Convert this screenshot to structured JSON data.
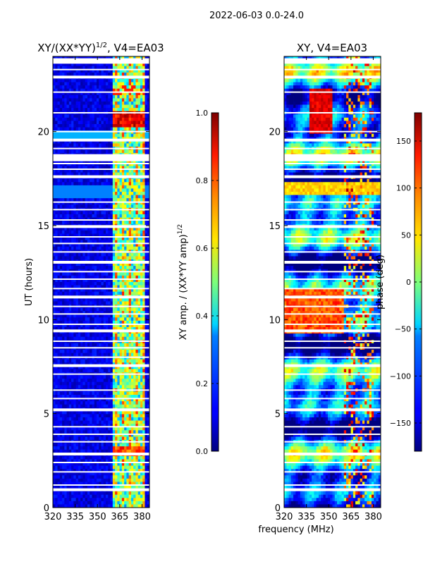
{
  "figure": {
    "suptitle": "2022-06-03 0.0-24.0",
    "xlabel_shared": "frequency (MHz)"
  },
  "chart_data": [
    {
      "type": "heatmap",
      "title": "XY/(XX*YY)",
      "title_superscript": "1/2",
      "title_suffix": ", V4=EA03",
      "xlabel": "",
      "ylabel": "UT (hours)",
      "xlim": [
        320,
        385
      ],
      "ylim": [
        0,
        24
      ],
      "xticks": [
        320,
        335,
        350,
        365,
        380
      ],
      "xtick_labels": [
        "320",
        "335",
        "350",
        "365",
        "380"
      ],
      "yticks": [
        0,
        5,
        10,
        15,
        20
      ],
      "ytick_labels": [
        "0",
        "5",
        "10",
        "15",
        "20"
      ],
      "colorbar": {
        "label": "XY amp. / (XX*YY amp)",
        "label_superscript": "1/2",
        "range": [
          0.0,
          1.0
        ],
        "ticks": [
          0.0,
          0.2,
          0.4,
          0.6,
          0.8,
          1.0
        ],
        "tick_labels": [
          "0.0",
          "0.2",
          "0.4",
          "0.6",
          "0.8",
          "1.0"
        ],
        "colormap": "jet"
      },
      "high_value_band_mhz": [
        361,
        382
      ],
      "notes": "Values near 0 (dark blue) below ~361 MHz; bright/high values in 361-382 MHz band, strongest near 20.5 h and 3 h."
    },
    {
      "type": "heatmap",
      "title": "XY, V4=EA03",
      "xlabel": "frequency (MHz)",
      "ylabel": "",
      "xlim": [
        320,
        385
      ],
      "ylim": [
        0,
        24
      ],
      "xticks": [
        320,
        335,
        350,
        365,
        380
      ],
      "xtick_labels": [
        "320",
        "335",
        "350",
        "365",
        "380"
      ],
      "yticks": [
        0,
        5,
        10,
        15,
        20
      ],
      "ytick_labels": [
        "0",
        "5",
        "10",
        "15",
        "20"
      ],
      "colorbar": {
        "label": "phase (deg)",
        "range": [
          -180,
          180
        ],
        "ticks": [
          -150,
          -100,
          -50,
          0,
          50,
          100,
          150
        ],
        "tick_labels": [
          "−150",
          "−100",
          "−50",
          "0",
          "50",
          "100",
          "150"
        ],
        "colormap": "jet"
      },
      "notes": "Phase varies widely; warm (positive) phases around 9.5-11.5 h and 20-22 h at low frequencies."
    }
  ],
  "data_gaps_hours": [
    0.95,
    1.2,
    1.9,
    2.4,
    2.85,
    3.5,
    3.9,
    4.3,
    5.2,
    5.8,
    6.25,
    7.1,
    7.55,
    8.0,
    8.5,
    8.85,
    9.4,
    9.75,
    10.3,
    10.7,
    11.2,
    11.65,
    12.15,
    12.55,
    13.05,
    13.6,
    14.05,
    14.4,
    14.95,
    15.3,
    15.85,
    16.25,
    17.6,
    18.0,
    18.3,
    19.1,
    19.55,
    20.0,
    21.0,
    22.1,
    22.9,
    23.3,
    23.65
  ],
  "colors": {
    "background": "#ffffff",
    "gap": "#ffffff",
    "axis": "#000000"
  }
}
